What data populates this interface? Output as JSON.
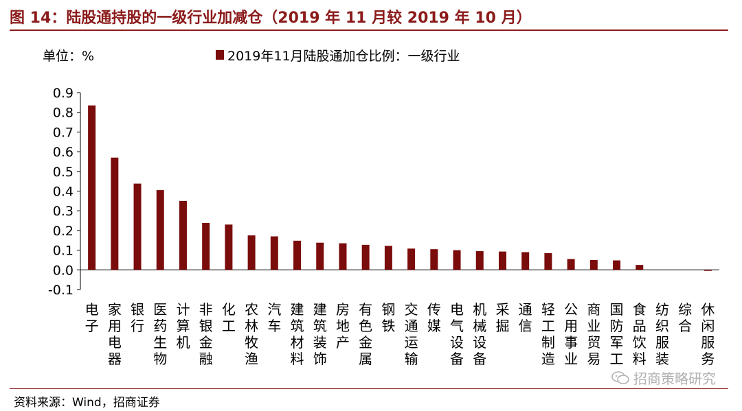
{
  "figure_title": "图 14：陆股通持股的一级行业加减仓（2019 年 11 月较 2019 年 10 月）",
  "source": "资料来源：Wind，招商证券",
  "watermark": "招商策略研究",
  "colors": {
    "bar": "#7b0c0c",
    "accent": "#8b1a1a",
    "axis": "#000000"
  },
  "chart_data": {
    "type": "bar",
    "unit_label": "单位：%",
    "legend": {
      "label": "2019年11月陆股通加仓比例：一级行业",
      "position": "top"
    },
    "ylim": [
      -0.1,
      0.9
    ],
    "yticks": [
      -0.1,
      0.0,
      0.1,
      0.2,
      0.3,
      0.4,
      0.5,
      0.6,
      0.7,
      0.8,
      0.9
    ],
    "ytick_labels": [
      "-0.1",
      "0.0",
      "0.1",
      "0.2",
      "0.3",
      "0.4",
      "0.5",
      "0.6",
      "0.7",
      "0.8",
      "0.9"
    ],
    "grid": false,
    "categories": [
      "电子",
      "家用电器",
      "银行",
      "医药生物",
      "计算机",
      "非银金融",
      "化工",
      "农林牧渔",
      "汽车",
      "建筑材料",
      "建筑装饰",
      "房地产",
      "有色金属",
      "钢铁",
      "交通运输",
      "传媒",
      "电气设备",
      "机械设备",
      "采掘",
      "通信",
      "轻工制造",
      "公用事业",
      "商业贸易",
      "国防军工",
      "食品饮料",
      "纺织服装",
      "综合",
      "休闲服务"
    ],
    "values": [
      0.835,
      0.57,
      0.438,
      0.405,
      0.35,
      0.238,
      0.23,
      0.175,
      0.17,
      0.148,
      0.138,
      0.135,
      0.127,
      0.122,
      0.108,
      0.105,
      0.1,
      0.095,
      0.093,
      0.09,
      0.085,
      0.055,
      0.05,
      0.048,
      0.025,
      0.0,
      0.0,
      -0.005
    ]
  }
}
